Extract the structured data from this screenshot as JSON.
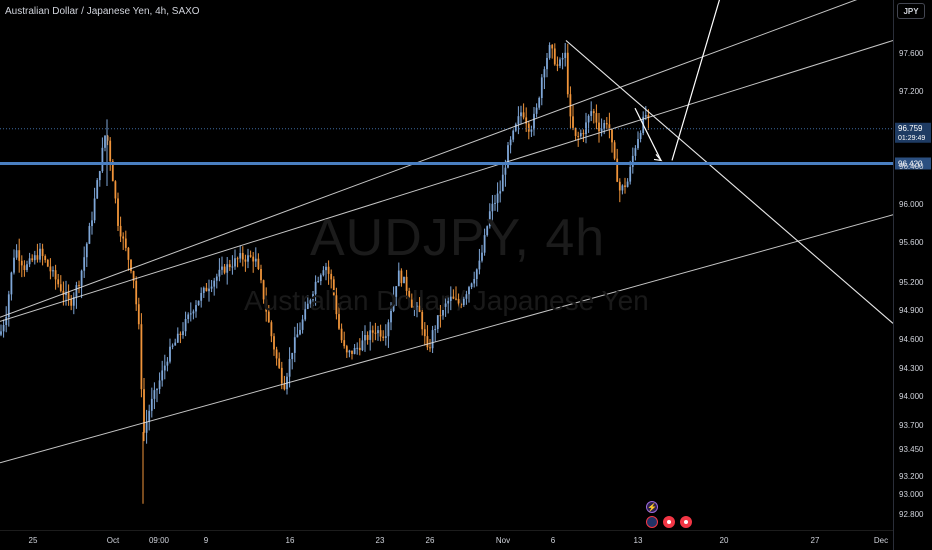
{
  "header": {
    "symbol_title": "Australian Dollar / Japanese Yen, 4h, SAXO"
  },
  "watermark": {
    "symbol": "AUDJPY, 4h",
    "name": "Australian Dollar / Japanese Yen"
  },
  "price_scale": {
    "currency": "JPY",
    "ticks": [
      "97.600",
      "97.200",
      "96.400",
      "96.000",
      "95.600",
      "95.200",
      "94.900",
      "94.600",
      "94.300",
      "94.000",
      "93.700",
      "93.450",
      "93.200",
      "93.000",
      "92.800"
    ],
    "last_price_label": "96.759",
    "countdown_label": "01:29:49",
    "level_label": "96.420"
  },
  "time_axis": {
    "labels": [
      "25",
      "Oct",
      "09:00",
      "9",
      "16",
      "23",
      "26",
      "Nov",
      "6",
      "13",
      "20",
      "27",
      "Dec"
    ]
  },
  "colors": {
    "background": "#000000",
    "bull": "#7fa7d8",
    "bear": "#f0943a",
    "level_line": "#4a7fc1",
    "drawing": "#e8e8e8",
    "text": "#d1d4dc"
  },
  "events": [
    "lightning-icon",
    "au-flag-icon",
    "event-dot-icon",
    "event-dot-icon"
  ],
  "chart_data": {
    "type": "candlestick",
    "title": "Australian Dollar / Japanese Yen, 4h, SAXO",
    "ylim": [
      92.8,
      97.6
    ],
    "last_price": 96.759,
    "horizontal_level": 96.42,
    "price_path": [
      [
        0,
        94.75
      ],
      [
        6,
        94.95
      ],
      [
        15,
        95.6
      ],
      [
        25,
        95.4
      ],
      [
        40,
        95.55
      ],
      [
        55,
        95.3
      ],
      [
        70,
        95.05
      ],
      [
        80,
        95.3
      ],
      [
        92,
        95.9
      ],
      [
        100,
        96.4
      ],
      [
        106,
        96.75
      ],
      [
        112,
        96.35
      ],
      [
        118,
        95.85
      ],
      [
        125,
        95.6
      ],
      [
        133,
        95.35
      ],
      [
        140,
        94.7
      ],
      [
        143,
        93.75
      ],
      [
        150,
        94.05
      ],
      [
        158,
        94.25
      ],
      [
        168,
        94.55
      ],
      [
        180,
        94.75
      ],
      [
        195,
        95.05
      ],
      [
        210,
        95.25
      ],
      [
        225,
        95.4
      ],
      [
        240,
        95.5
      ],
      [
        255,
        95.5
      ],
      [
        262,
        95.2
      ],
      [
        270,
        94.8
      ],
      [
        278,
        94.45
      ],
      [
        284,
        94.25
      ],
      [
        292,
        94.6
      ],
      [
        305,
        94.95
      ],
      [
        315,
        95.25
      ],
      [
        325,
        95.45
      ],
      [
        332,
        95.25
      ],
      [
        340,
        94.75
      ],
      [
        346,
        94.55
      ],
      [
        355,
        94.6
      ],
      [
        365,
        94.7
      ],
      [
        375,
        94.8
      ],
      [
        385,
        94.75
      ],
      [
        392,
        95.05
      ],
      [
        398,
        95.35
      ],
      [
        405,
        95.25
      ],
      [
        412,
        95.05
      ],
      [
        420,
        94.95
      ],
      [
        428,
        94.55
      ],
      [
        432,
        94.75
      ],
      [
        440,
        94.95
      ],
      [
        450,
        95.1
      ],
      [
        460,
        95.05
      ],
      [
        470,
        95.25
      ],
      [
        480,
        95.45
      ],
      [
        490,
        95.95
      ],
      [
        500,
        96.15
      ],
      [
        508,
        96.55
      ],
      [
        515,
        96.75
      ],
      [
        522,
        96.95
      ],
      [
        530,
        96.75
      ],
      [
        537,
        96.95
      ],
      [
        543,
        97.35
      ],
      [
        550,
        97.55
      ],
      [
        558,
        97.35
      ],
      [
        565,
        97.5
      ],
      [
        570,
        96.85
      ],
      [
        576,
        96.65
      ],
      [
        584,
        96.75
      ],
      [
        592,
        96.95
      ],
      [
        600,
        96.75
      ],
      [
        608,
        96.85
      ],
      [
        614,
        96.45
      ],
      [
        620,
        96.15
      ],
      [
        628,
        96.25
      ],
      [
        634,
        96.55
      ],
      [
        640,
        96.75
      ],
      [
        646,
        96.9
      ],
      [
        650,
        96.76
      ]
    ],
    "trendlines": [
      {
        "x1": 0,
        "y1": 94.92,
        "x2": 893,
        "y2": 98.15
      },
      {
        "x1": 0,
        "y1": 94.88,
        "x2": 893,
        "y2": 97.62
      },
      {
        "x1": 0,
        "y1": 93.5,
        "x2": 893,
        "y2": 95.92
      },
      {
        "x1": 566,
        "y1": 97.62,
        "x2": 893,
        "y2": 94.86
      },
      {
        "x1": 566,
        "y1": 97.62,
        "x2": 893,
        "y2": 94.86
      }
    ],
    "projection": [
      [
        635,
        96.96
      ],
      [
        661,
        96.45
      ],
      [
        672,
        96.45
      ],
      [
        725,
        98.2
      ]
    ]
  }
}
